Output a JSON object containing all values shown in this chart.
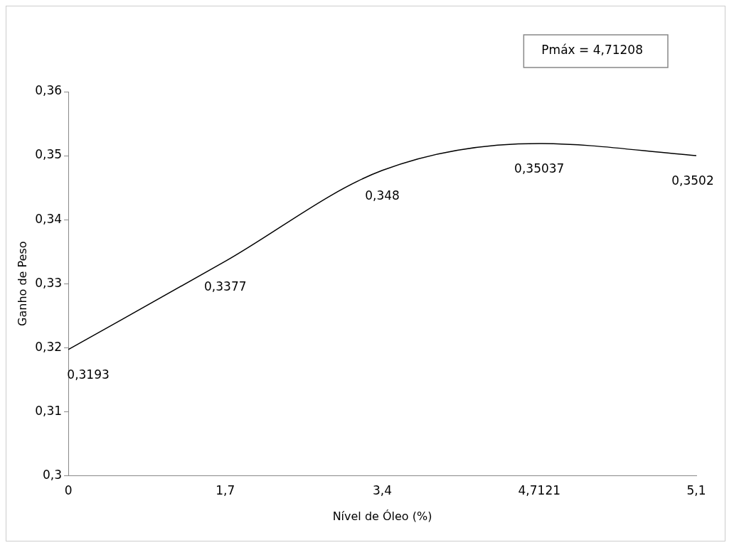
{
  "chart_data": {
    "type": "line",
    "xlabel": "Nível de Óleo (%)",
    "ylabel": "Ganho de Peso",
    "categories": [
      "0",
      "1,7",
      "3,4",
      "4,7121",
      "5,1"
    ],
    "series": [
      {
        "color": "#000000",
        "values": [
          0.3197,
          0.3335,
          0.3477,
          0.3519,
          0.35
        ]
      }
    ],
    "ylim": [
      0.3,
      0.36
    ],
    "yticks": [
      {
        "value": 0.3,
        "label": "0,3"
      },
      {
        "value": 0.31,
        "label": "0,31"
      },
      {
        "value": 0.32,
        "label": "0,32"
      },
      {
        "value": 0.33,
        "label": "0,33"
      },
      {
        "value": 0.34,
        "label": "0,34"
      },
      {
        "value": 0.35,
        "label": "0,35"
      },
      {
        "value": 0.36,
        "label": "0,36"
      }
    ],
    "grid": false,
    "legend": false,
    "marker": "none",
    "line_style": "solid",
    "annotations": [
      "Pmáx = 4,71208",
      {
        "text": "0,3193",
        "x": "0",
        "y": 0.3197
      },
      {
        "text": "0,3377",
        "x": "1,7",
        "y": 0.3335
      },
      {
        "text": "0,348",
        "x": "3,4",
        "y": 0.3477
      },
      {
        "text": "0,35037",
        "x": "4,7121",
        "y": 0.3519
      },
      {
        "text": "0,3502",
        "x": "5,1",
        "y": 0.35
      }
    ]
  }
}
